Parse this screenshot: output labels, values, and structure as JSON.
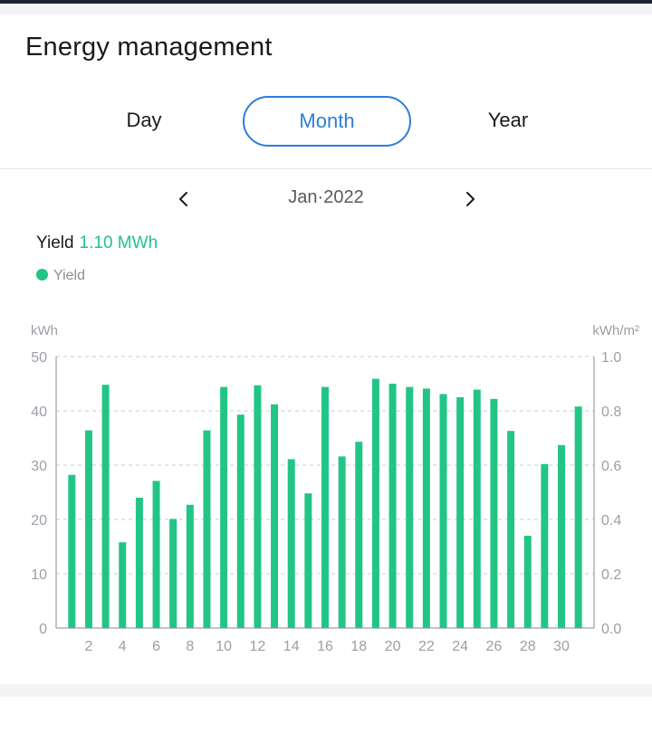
{
  "header": {
    "title": "Energy management"
  },
  "tabs": [
    {
      "label": "Day",
      "active": false
    },
    {
      "label": "Month",
      "active": true
    },
    {
      "label": "Year",
      "active": false
    }
  ],
  "period": {
    "label": "Jan·2022",
    "prev_icon": "chevron-left-icon",
    "next_icon": "chevron-right-icon"
  },
  "summary": {
    "label": "Yield",
    "value": "1.10 MWh"
  },
  "legend": {
    "label": "Yield",
    "color": "#22c585"
  },
  "chart_data": {
    "type": "bar",
    "categories": [
      1,
      2,
      3,
      4,
      5,
      6,
      7,
      8,
      9,
      10,
      11,
      12,
      13,
      14,
      15,
      16,
      17,
      18,
      19,
      20,
      21,
      22,
      23,
      24,
      25,
      26,
      27,
      28,
      29,
      30,
      31
    ],
    "x_tick_labels": [
      "2",
      "4",
      "6",
      "8",
      "10",
      "12",
      "14",
      "16",
      "18",
      "20",
      "22",
      "24",
      "26",
      "28",
      "30"
    ],
    "series": [
      {
        "name": "Yield",
        "values": [
          28.2,
          36.4,
          44.8,
          15.8,
          24,
          27.1,
          20.1,
          22.7,
          36.4,
          44.4,
          39.3,
          44.7,
          41.2,
          31.1,
          24.8,
          44.4,
          31.6,
          34.3,
          45.9,
          45,
          44.4,
          44.1,
          43.1,
          42.5,
          43.9,
          42.2,
          36.3,
          17,
          30.2,
          33.7,
          40.8
        ],
        "color": "#22c585"
      }
    ],
    "ylabel_left": "kWh",
    "ylabel_right": "kWh/m²",
    "ylim_left": [
      0,
      50
    ],
    "yticks_left": [
      "0",
      "10",
      "20",
      "30",
      "40",
      "50"
    ],
    "ylim_right": [
      0,
      1.0
    ],
    "yticks_right": [
      "0.0",
      "0.2",
      "0.4",
      "0.6",
      "0.8",
      "1.0"
    ],
    "grid": true
  }
}
